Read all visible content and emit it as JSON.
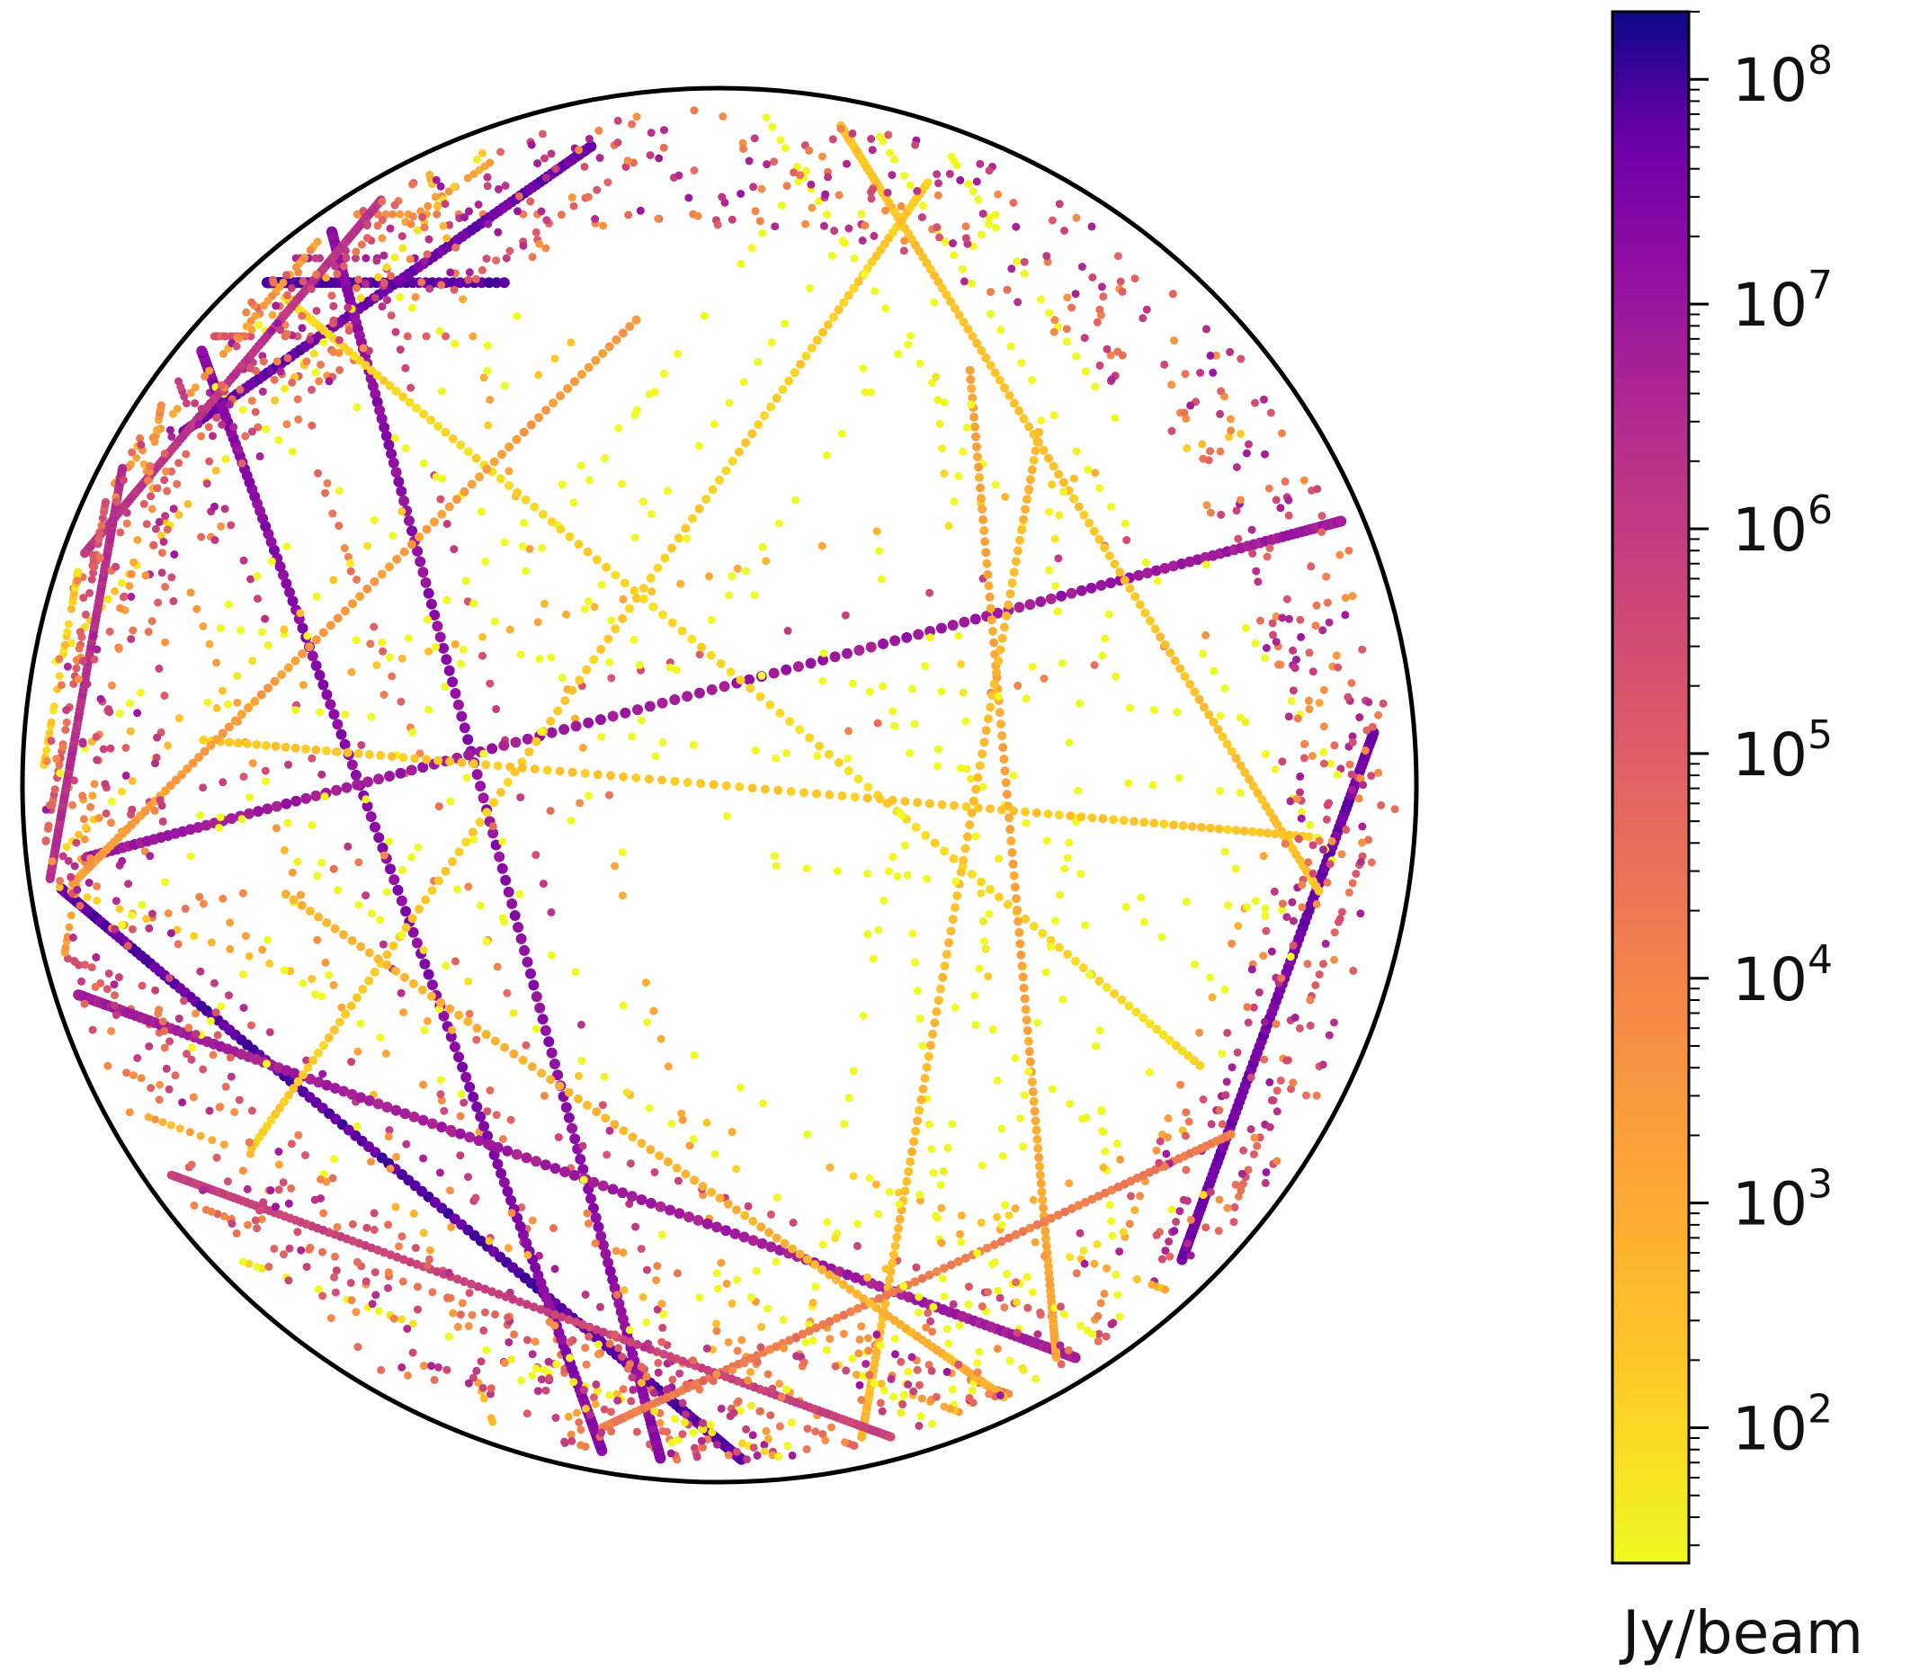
{
  "chart_data": {
    "type": "scatter",
    "projection": "orthographic all-sky (circular)",
    "colormap": "plasma (reversed)",
    "colorbar": {
      "scale": "log",
      "range": [
        25,
        200000000
      ],
      "ticks": [
        {
          "value": 100,
          "base": "10",
          "exponent": "2"
        },
        {
          "value": 1000,
          "base": "10",
          "exponent": "3"
        },
        {
          "value": 10000,
          "base": "10",
          "exponent": "4"
        },
        {
          "value": 100000,
          "base": "10",
          "exponent": "5"
        },
        {
          "value": 1000000,
          "base": "10",
          "exponent": "6"
        },
        {
          "value": 10000000,
          "base": "10",
          "exponent": "7"
        },
        {
          "value": 100000000,
          "base": "10",
          "exponent": "8"
        }
      ],
      "unit_label": "Jy/beam"
    },
    "colors": {
      "low": "#f0f921",
      "mid_low": "#fca636",
      "mid": "#e16462",
      "mid_high": "#b12a90",
      "high": "#6a00a8",
      "max": "#0d0887"
    },
    "tracks": [
      {
        "lon_start": -112,
        "lon_end": -28,
        "lat": 48,
        "log_flux": 7.9
      },
      {
        "lon_start": -48,
        "lon_end": 56,
        "lat": 62,
        "log_flux": 7.7
      },
      {
        "lon_start": -75,
        "lon_end": 85,
        "lat": -48,
        "log_flux": 7.8
      },
      {
        "lon_start": -65,
        "lon_end": 60,
        "lat": -62,
        "log_flux": 7.6
      },
      {
        "lon_start": -88,
        "lon_end": 88,
        "lat": -20,
        "log_flux": 7.2
      },
      {
        "lon_start": -88,
        "lon_end": 88,
        "lat": 30,
        "log_flux": 7.3
      },
      {
        "lon_start": -70,
        "lon_end": 88,
        "lat": 8,
        "log_flux": 6.9
      },
      {
        "lon_start": -85,
        "lon_end": 85,
        "lat": -38,
        "log_flux": 6.8
      },
      {
        "lon_start": -60,
        "lon_end": 70,
        "lat": 15,
        "log_flux": 2.2
      },
      {
        "lon_start": -80,
        "lon_end": 55,
        "lat": 42,
        "log_flux": 2.4
      },
      {
        "lon_start": -55,
        "lon_end": 75,
        "lat": -8,
        "log_flux": 2.0
      },
      {
        "lon_start": -78,
        "lon_end": 40,
        "lat": -25,
        "log_flux": 3.1
      },
      {
        "lon_start": -40,
        "lon_end": 80,
        "lat": 22,
        "log_flux": 2.6
      },
      {
        "lon_start": -65,
        "lon_end": 50,
        "lat": -52,
        "log_flux": 4.2
      },
      {
        "lon_start": -82,
        "lon_end": 80,
        "lat": 55,
        "log_flux": 5.8
      },
      {
        "lon_start": -86,
        "lon_end": 86,
        "lat": -70,
        "log_flux": 6.2
      },
      {
        "lon_start": -86,
        "lon_end": 86,
        "lat": 72,
        "log_flux": 6.4
      },
      {
        "lon_start": -50,
        "lon_end": 62,
        "lat": 0,
        "log_flux": 2.3
      },
      {
        "lon_start": -72,
        "lon_end": 30,
        "lat": 35,
        "log_flux": 3.4
      },
      {
        "lon_start": -30,
        "lon_end": 86,
        "lat": -30,
        "log_flux": 2.8
      }
    ],
    "title": "",
    "xlabel": "",
    "ylabel": ""
  }
}
